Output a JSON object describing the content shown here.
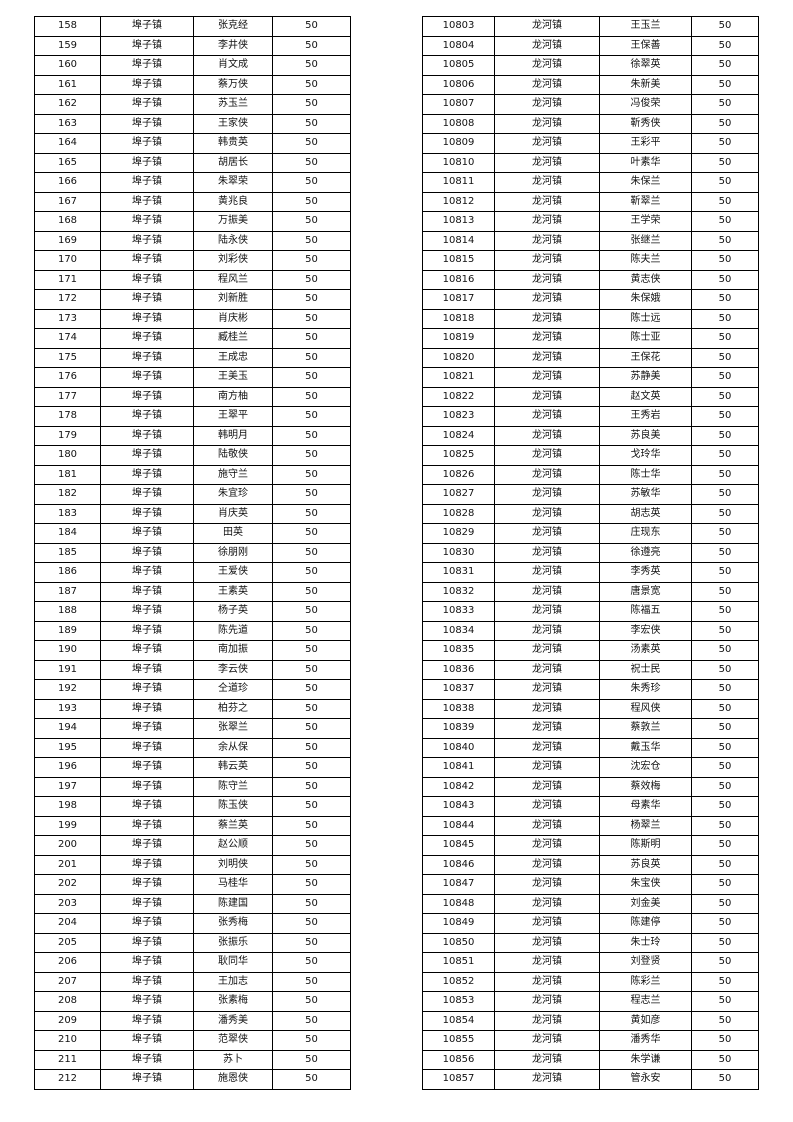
{
  "left_table": {
    "rows": [
      [
        "158",
        "埠子镇",
        "张克经",
        "50"
      ],
      [
        "159",
        "埠子镇",
        "李井侠",
        "50"
      ],
      [
        "160",
        "埠子镇",
        "肖文成",
        "50"
      ],
      [
        "161",
        "埠子镇",
        "蔡万侠",
        "50"
      ],
      [
        "162",
        "埠子镇",
        "苏玉兰",
        "50"
      ],
      [
        "163",
        "埠子镇",
        "王家侠",
        "50"
      ],
      [
        "164",
        "埠子镇",
        "韩贵英",
        "50"
      ],
      [
        "165",
        "埠子镇",
        "胡居长",
        "50"
      ],
      [
        "166",
        "埠子镇",
        "朱翠荣",
        "50"
      ],
      [
        "167",
        "埠子镇",
        "黄兆良",
        "50"
      ],
      [
        "168",
        "埠子镇",
        "万振美",
        "50"
      ],
      [
        "169",
        "埠子镇",
        "陆永侠",
        "50"
      ],
      [
        "170",
        "埠子镇",
        "刘彩侠",
        "50"
      ],
      [
        "171",
        "埠子镇",
        "程风兰",
        "50"
      ],
      [
        "172",
        "埠子镇",
        "刘新胜",
        "50"
      ],
      [
        "173",
        "埠子镇",
        "肖庆彬",
        "50"
      ],
      [
        "174",
        "埠子镇",
        "臧桂兰",
        "50"
      ],
      [
        "175",
        "埠子镇",
        "王成忠",
        "50"
      ],
      [
        "176",
        "埠子镇",
        "王美玉",
        "50"
      ],
      [
        "177",
        "埠子镇",
        "南方柚",
        "50"
      ],
      [
        "178",
        "埠子镇",
        "王翠平",
        "50"
      ],
      [
        "179",
        "埠子镇",
        "韩明月",
        "50"
      ],
      [
        "180",
        "埠子镇",
        "陆敬侠",
        "50"
      ],
      [
        "181",
        "埠子镇",
        "施守兰",
        "50"
      ],
      [
        "182",
        "埠子镇",
        "朱宜珍",
        "50"
      ],
      [
        "183",
        "埠子镇",
        "肖庆英",
        "50"
      ],
      [
        "184",
        "埠子镇",
        "田英",
        "50"
      ],
      [
        "185",
        "埠子镇",
        "徐朋刚",
        "50"
      ],
      [
        "186",
        "埠子镇",
        "王爱侠",
        "50"
      ],
      [
        "187",
        "埠子镇",
        "王素英",
        "50"
      ],
      [
        "188",
        "埠子镇",
        "杨子英",
        "50"
      ],
      [
        "189",
        "埠子镇",
        "陈先道",
        "50"
      ],
      [
        "190",
        "埠子镇",
        "南加振",
        "50"
      ],
      [
        "191",
        "埠子镇",
        "李云侠",
        "50"
      ],
      [
        "192",
        "埠子镇",
        "仝道珍",
        "50"
      ],
      [
        "193",
        "埠子镇",
        "柏芬之",
        "50"
      ],
      [
        "194",
        "埠子镇",
        "张翠兰",
        "50"
      ],
      [
        "195",
        "埠子镇",
        "余从保",
        "50"
      ],
      [
        "196",
        "埠子镇",
        "韩云英",
        "50"
      ],
      [
        "197",
        "埠子镇",
        "陈守兰",
        "50"
      ],
      [
        "198",
        "埠子镇",
        "陈玉侠",
        "50"
      ],
      [
        "199",
        "埠子镇",
        "蔡兰英",
        "50"
      ],
      [
        "200",
        "埠子镇",
        "赵公顺",
        "50"
      ],
      [
        "201",
        "埠子镇",
        "刘明侠",
        "50"
      ],
      [
        "202",
        "埠子镇",
        "马桂华",
        "50"
      ],
      [
        "203",
        "埠子镇",
        "陈建国",
        "50"
      ],
      [
        "204",
        "埠子镇",
        "张秀梅",
        "50"
      ],
      [
        "205",
        "埠子镇",
        "张振乐",
        "50"
      ],
      [
        "206",
        "埠子镇",
        "耿同华",
        "50"
      ],
      [
        "207",
        "埠子镇",
        "王加志",
        "50"
      ],
      [
        "208",
        "埠子镇",
        "张素梅",
        "50"
      ],
      [
        "209",
        "埠子镇",
        "潘秀美",
        "50"
      ],
      [
        "210",
        "埠子镇",
        "范翠侠",
        "50"
      ],
      [
        "211",
        "埠子镇",
        "苏卜",
        "50"
      ],
      [
        "212",
        "埠子镇",
        "施恩侠",
        "50"
      ]
    ]
  },
  "right_table": {
    "rows": [
      [
        "10803",
        "龙河镇",
        "王玉兰",
        "50"
      ],
      [
        "10804",
        "龙河镇",
        "王保善",
        "50"
      ],
      [
        "10805",
        "龙河镇",
        "徐翠英",
        "50"
      ],
      [
        "10806",
        "龙河镇",
        "朱新美",
        "50"
      ],
      [
        "10807",
        "龙河镇",
        "冯俊荣",
        "50"
      ],
      [
        "10808",
        "龙河镇",
        "靳秀侠",
        "50"
      ],
      [
        "10809",
        "龙河镇",
        "王彩平",
        "50"
      ],
      [
        "10810",
        "龙河镇",
        "叶素华",
        "50"
      ],
      [
        "10811",
        "龙河镇",
        "朱保兰",
        "50"
      ],
      [
        "10812",
        "龙河镇",
        "靳翠兰",
        "50"
      ],
      [
        "10813",
        "龙河镇",
        "王学荣",
        "50"
      ],
      [
        "10814",
        "龙河镇",
        "张继兰",
        "50"
      ],
      [
        "10815",
        "龙河镇",
        "陈夫兰",
        "50"
      ],
      [
        "10816",
        "龙河镇",
        "黄志侠",
        "50"
      ],
      [
        "10817",
        "龙河镇",
        "朱保娥",
        "50"
      ],
      [
        "10818",
        "龙河镇",
        "陈士远",
        "50"
      ],
      [
        "10819",
        "龙河镇",
        "陈士亚",
        "50"
      ],
      [
        "10820",
        "龙河镇",
        "王保花",
        "50"
      ],
      [
        "10821",
        "龙河镇",
        "苏静美",
        "50"
      ],
      [
        "10822",
        "龙河镇",
        "赵文英",
        "50"
      ],
      [
        "10823",
        "龙河镇",
        "王秀岩",
        "50"
      ],
      [
        "10824",
        "龙河镇",
        "苏良美",
        "50"
      ],
      [
        "10825",
        "龙河镇",
        "戈玲华",
        "50"
      ],
      [
        "10826",
        "龙河镇",
        "陈士华",
        "50"
      ],
      [
        "10827",
        "龙河镇",
        "苏敏华",
        "50"
      ],
      [
        "10828",
        "龙河镇",
        "胡志英",
        "50"
      ],
      [
        "10829",
        "龙河镇",
        "庄现东",
        "50"
      ],
      [
        "10830",
        "龙河镇",
        "徐遵亮",
        "50"
      ],
      [
        "10831",
        "龙河镇",
        "李秀英",
        "50"
      ],
      [
        "10832",
        "龙河镇",
        "唐景宽",
        "50"
      ],
      [
        "10833",
        "龙河镇",
        "陈福五",
        "50"
      ],
      [
        "10834",
        "龙河镇",
        "李宏侠",
        "50"
      ],
      [
        "10835",
        "龙河镇",
        "汤素英",
        "50"
      ],
      [
        "10836",
        "龙河镇",
        "祝士民",
        "50"
      ],
      [
        "10837",
        "龙河镇",
        "朱秀珍",
        "50"
      ],
      [
        "10838",
        "龙河镇",
        "程风侠",
        "50"
      ],
      [
        "10839",
        "龙河镇",
        "蔡敦兰",
        "50"
      ],
      [
        "10840",
        "龙河镇",
        "戴玉华",
        "50"
      ],
      [
        "10841",
        "龙河镇",
        "沈宏仓",
        "50"
      ],
      [
        "10842",
        "龙河镇",
        "蔡效梅",
        "50"
      ],
      [
        "10843",
        "龙河镇",
        "母素华",
        "50"
      ],
      [
        "10844",
        "龙河镇",
        "杨翠兰",
        "50"
      ],
      [
        "10845",
        "龙河镇",
        "陈斯明",
        "50"
      ],
      [
        "10846",
        "龙河镇",
        "苏良英",
        "50"
      ],
      [
        "10847",
        "龙河镇",
        "朱宝侠",
        "50"
      ],
      [
        "10848",
        "龙河镇",
        "刘金美",
        "50"
      ],
      [
        "10849",
        "龙河镇",
        "陈建停",
        "50"
      ],
      [
        "10850",
        "龙河镇",
        "朱士玲",
        "50"
      ],
      [
        "10851",
        "龙河镇",
        "刘登贤",
        "50"
      ],
      [
        "10852",
        "龙河镇",
        "陈彩兰",
        "50"
      ],
      [
        "10853",
        "龙河镇",
        "程志兰",
        "50"
      ],
      [
        "10854",
        "龙河镇",
        "黄如彦",
        "50"
      ],
      [
        "10855",
        "龙河镇",
        "潘秀华",
        "50"
      ],
      [
        "10856",
        "龙河镇",
        "朱学谦",
        "50"
      ],
      [
        "10857",
        "龙河镇",
        "管永安",
        "50"
      ]
    ]
  }
}
